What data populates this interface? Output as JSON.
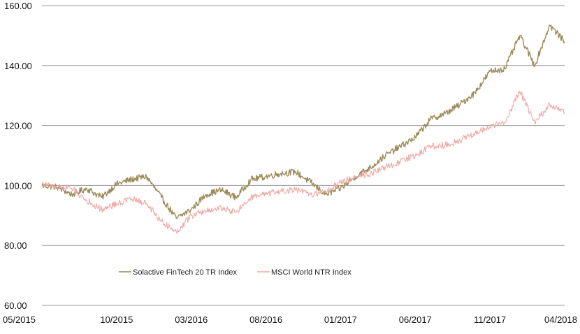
{
  "chart_data": {
    "type": "line",
    "title": "",
    "xlabel": "",
    "ylabel": "",
    "ylim": [
      60,
      160
    ],
    "xlim": [
      "05/2015",
      "04/2018"
    ],
    "grid": true,
    "legend_position": "bottom-left",
    "y_ticks": [
      "60.00",
      "80.00",
      "100.00",
      "120.00",
      "140.00",
      "160.00"
    ],
    "x_ticks": [
      "05/2015",
      "10/2015",
      "03/2016",
      "08/2016",
      "01/2017",
      "06/2017",
      "11/2017",
      "04/2018"
    ],
    "series": [
      {
        "name": "Solactive FinTech 20 TR Index",
        "color": "#9c8a5a",
        "x": [
          "2015-05",
          "2015-06",
          "2015-07",
          "2015-08",
          "2015-09",
          "2015-10",
          "2015-11",
          "2015-12",
          "2016-01",
          "2016-02",
          "2016-03",
          "2016-04",
          "2016-05",
          "2016-06",
          "2016-07",
          "2016-08",
          "2016-09",
          "2016-10",
          "2016-11",
          "2016-12",
          "2017-01",
          "2017-02",
          "2017-03",
          "2017-04",
          "2017-05",
          "2017-06",
          "2017-07",
          "2017-08",
          "2017-09",
          "2017-10",
          "2017-11",
          "2017-12",
          "2018-01",
          "2018-02",
          "2018-03",
          "2018-04"
        ],
        "values": [
          100.0,
          99.5,
          97.0,
          99.0,
          96.0,
          100.5,
          102.0,
          103.0,
          96.0,
          89.0,
          92.0,
          97.0,
          98.5,
          96.0,
          102.0,
          103.0,
          104.0,
          104.5,
          101.0,
          97.0,
          99.0,
          103.0,
          106.0,
          110.0,
          113.0,
          116.0,
          122.0,
          124.0,
          127.0,
          131.0,
          138.0,
          139.0,
          150.0,
          140.0,
          153.5,
          148.0
        ]
      },
      {
        "name": "MSCI World NTR Index",
        "color": "#f0a7a2",
        "x": [
          "2015-05",
          "2015-06",
          "2015-07",
          "2015-08",
          "2015-09",
          "2015-10",
          "2015-11",
          "2015-12",
          "2016-01",
          "2016-02",
          "2016-03",
          "2016-04",
          "2016-05",
          "2016-06",
          "2016-07",
          "2016-08",
          "2016-09",
          "2016-10",
          "2016-11",
          "2016-12",
          "2017-01",
          "2017-02",
          "2017-03",
          "2017-04",
          "2017-05",
          "2017-06",
          "2017-07",
          "2017-08",
          "2017-09",
          "2017-10",
          "2017-11",
          "2017-12",
          "2018-01",
          "2018-02",
          "2018-03",
          "2018-04"
        ],
        "values": [
          100.5,
          99.5,
          99.0,
          95.0,
          92.0,
          94.0,
          95.5,
          94.0,
          88.0,
          84.5,
          90.0,
          91.5,
          92.5,
          91.0,
          96.0,
          97.0,
          98.0,
          98.5,
          97.0,
          98.0,
          101.0,
          103.0,
          104.0,
          106.0,
          108.0,
          110.0,
          113.0,
          113.5,
          115.0,
          117.5,
          119.5,
          121.0,
          131.5,
          121.0,
          127.0,
          124.0
        ]
      }
    ]
  }
}
